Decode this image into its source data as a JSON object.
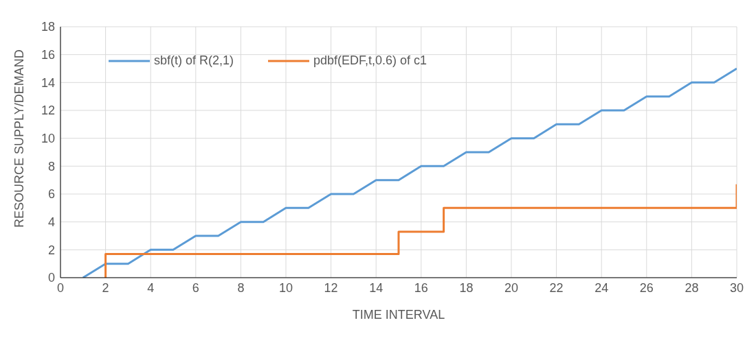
{
  "chart_data": {
    "type": "line",
    "xlabel": "TIME INTERVAL",
    "ylabel": "RESOURCE SUPPLY/DEMAND",
    "xlim": [
      0,
      30
    ],
    "xticks": [
      0,
      2,
      4,
      6,
      8,
      10,
      12,
      14,
      16,
      18,
      20,
      22,
      24,
      26,
      28,
      30
    ],
    "ylim": [
      0,
      18
    ],
    "yticks": [
      0,
      2,
      4,
      6,
      8,
      10,
      12,
      14,
      16,
      18
    ],
    "grid": true,
    "legend": "top left",
    "marker": "none",
    "line_style": "solid",
    "series": [
      {
        "name": "sbf(t) of R(2,1)",
        "color": "#5b9bd5",
        "x": [
          1,
          2,
          3,
          4,
          5,
          6,
          7,
          8,
          9,
          10,
          11,
          12,
          13,
          14,
          15,
          16,
          17,
          18,
          19,
          20,
          21,
          22,
          23,
          24,
          25,
          26,
          27,
          28,
          29,
          30
        ],
        "values": [
          0,
          1,
          1,
          2,
          2,
          3,
          3,
          4,
          4,
          5,
          5,
          6,
          6,
          7,
          7,
          8,
          8,
          9,
          9,
          10,
          10,
          11,
          11,
          12,
          12,
          13,
          13,
          14,
          14,
          15
        ]
      },
      {
        "name": "pdbf(EDF,t,0.6) of c1",
        "color": "#ed7d31",
        "x": [
          2,
          2,
          15,
          15,
          17,
          17,
          30,
          30
        ],
        "values": [
          0,
          1.7,
          1.7,
          3.3,
          3.3,
          5,
          5,
          6.7
        ]
      }
    ]
  }
}
